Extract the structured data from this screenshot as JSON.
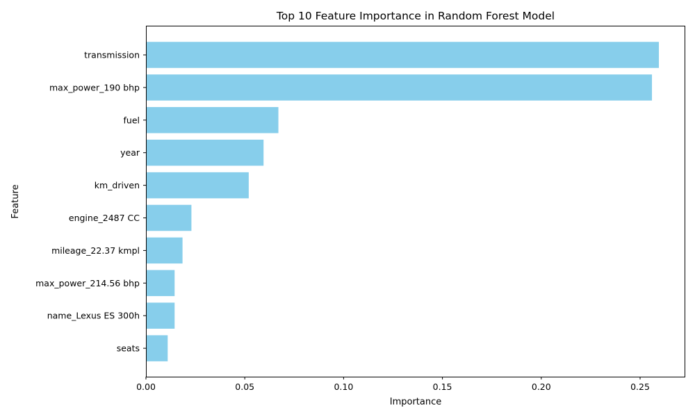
{
  "chart_data": {
    "type": "bar",
    "orientation": "horizontal",
    "title": "Top 10 Feature Importance in Random Forest Model",
    "xlabel": "Importance",
    "ylabel": "Feature",
    "categories": [
      "transmission",
      "max_power_190 bhp",
      "fuel",
      "year",
      "km_driven",
      "engine_2487 CC",
      "mileage_22.37 kmpl",
      "max_power_214.56 bhp",
      "name_Lexus ES 300h",
      "seats"
    ],
    "values": [
      0.2595,
      0.256,
      0.067,
      0.0595,
      0.052,
      0.023,
      0.0185,
      0.0145,
      0.0145,
      0.011
    ],
    "xlim": [
      0,
      0.2725
    ],
    "xticks": [
      0,
      0.05,
      0.1,
      0.15,
      0.2,
      0.25
    ],
    "xtick_labels": [
      "0.00",
      "0.05",
      "0.10",
      "0.15",
      "0.20",
      "0.25"
    ],
    "bar_color": "#87ceeb",
    "grid": false,
    "legend": "none"
  }
}
